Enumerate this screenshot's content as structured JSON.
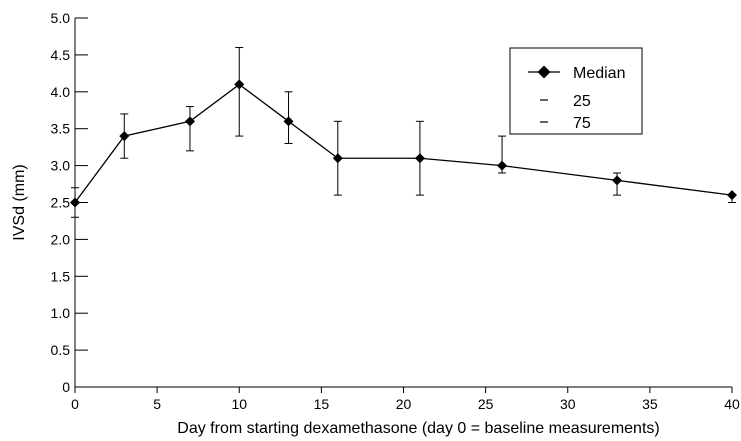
{
  "chart_data": {
    "type": "line",
    "xlabel": "Day from starting dexamethasone (day 0 = baseline measurements)",
    "ylabel": "IVSd (mm)",
    "xlim": [
      0,
      40
    ],
    "ylim": [
      0,
      5.0
    ],
    "xticks": [
      "0",
      "5",
      "10",
      "15",
      "20",
      "25",
      "30",
      "35",
      "40"
    ],
    "yticks": [
      "0",
      "0.5",
      "1.0",
      "1.5",
      "2.0",
      "2.5",
      "3.0",
      "3.5",
      "4.0",
      "4.5",
      "5.0"
    ],
    "grid": false,
    "legend_position": "top-right",
    "x": [
      0,
      3,
      7,
      10,
      13,
      16,
      21,
      26,
      33,
      40
    ],
    "series": [
      {
        "name": "Median",
        "values": [
          2.5,
          3.4,
          3.6,
          4.1,
          3.6,
          3.1,
          3.1,
          3.0,
          2.8,
          2.6
        ]
      },
      {
        "name": "25",
        "values": [
          2.3,
          3.1,
          3.2,
          3.4,
          3.3,
          2.6,
          2.6,
          2.9,
          2.6,
          2.5
        ]
      },
      {
        "name": "75",
        "values": [
          2.7,
          3.7,
          3.8,
          4.6,
          4.0,
          3.6,
          3.6,
          3.4,
          2.9,
          2.6
        ]
      }
    ]
  }
}
